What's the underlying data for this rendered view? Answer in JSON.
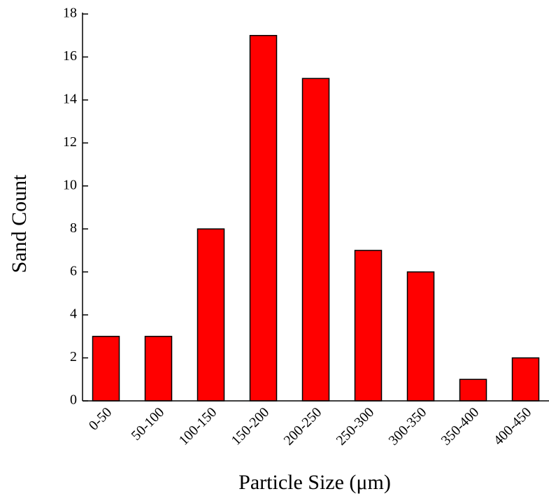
{
  "chart_data": {
    "type": "bar",
    "x_label": "Particle Size   (μm)",
    "y_label": "Sand Count",
    "categories": [
      "0-50",
      "50-100",
      "100-150",
      "150-200",
      "200-250",
      "250-300",
      "300-350",
      "350-400",
      "400-450"
    ],
    "values": [
      3,
      3,
      8,
      17,
      15,
      7,
      6,
      1,
      2
    ],
    "color": "#ff0000",
    "ylim": [
      0,
      18
    ],
    "yticks": [
      0,
      2,
      4,
      6,
      8,
      10,
      12,
      14,
      16,
      18
    ],
    "grid": false
  }
}
